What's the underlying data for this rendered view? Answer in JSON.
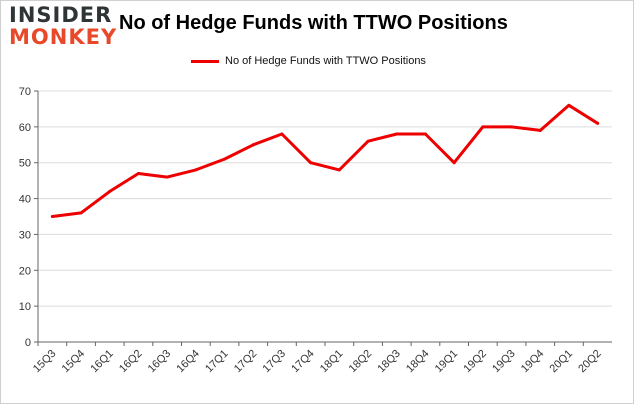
{
  "brand": {
    "line1": "INSIDER",
    "line2": "MONKEY"
  },
  "chart_data": {
    "type": "line",
    "title": "No of Hedge Funds with TTWO Positions",
    "xlabel": "",
    "ylabel": "",
    "ylim": [
      0,
      70
    ],
    "yticks": [
      0,
      10,
      20,
      30,
      40,
      50,
      60,
      70
    ],
    "grid": true,
    "legend_position": "top",
    "categories": [
      "15Q3",
      "15Q4",
      "16Q1",
      "16Q2",
      "16Q3",
      "16Q4",
      "17Q1",
      "17Q2",
      "17Q3",
      "17Q4",
      "18Q1",
      "18Q2",
      "18Q3",
      "18Q4",
      "19Q1",
      "19Q2",
      "19Q3",
      "19Q4",
      "20Q1",
      "20Q2"
    ],
    "series": [
      {
        "name": "No of Hedge Funds with TTWO Positions",
        "color": "#ee0000",
        "values": [
          35,
          36,
          42,
          47,
          46,
          48,
          51,
          55,
          58,
          50,
          48,
          56,
          58,
          58,
          50,
          60,
          60,
          59,
          66,
          61
        ]
      }
    ]
  }
}
